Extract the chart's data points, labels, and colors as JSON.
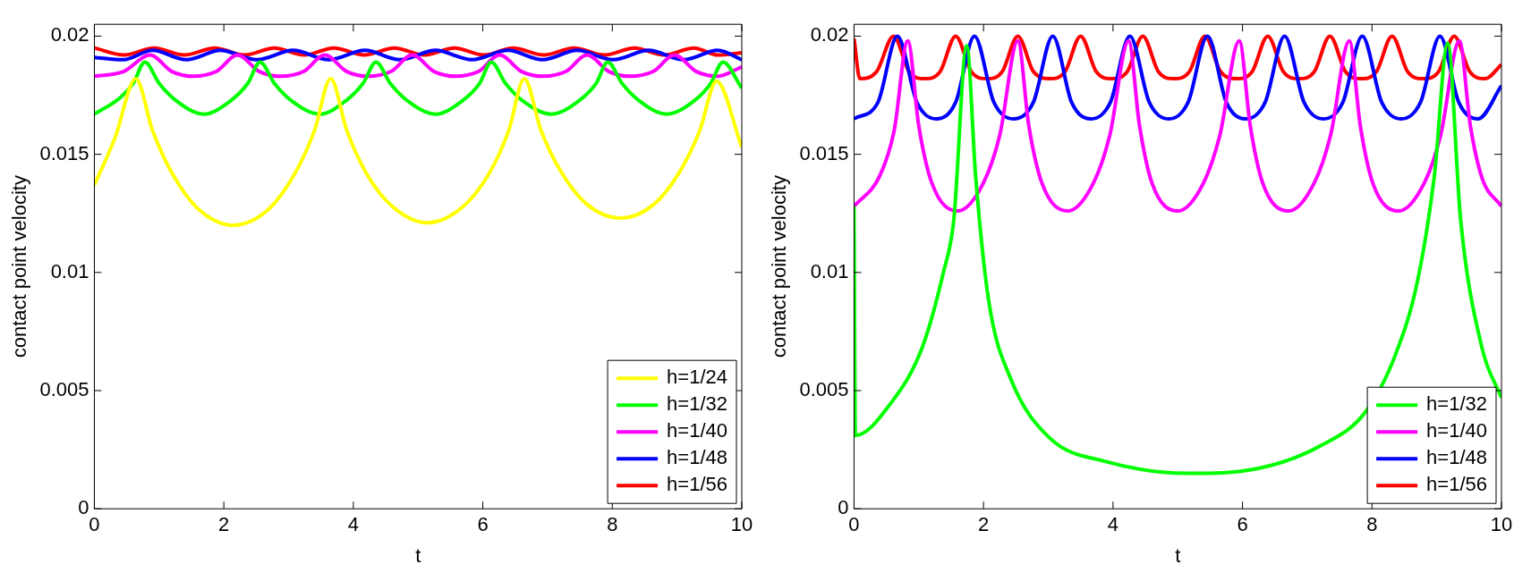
{
  "chart_data": [
    {
      "type": "line",
      "xlabel": "t",
      "ylabel": "contact point velocity",
      "xlim": [
        0,
        10
      ],
      "xticks": [
        0,
        2,
        4,
        6,
        8,
        10
      ],
      "ylim": [
        0,
        0.0205
      ],
      "yticks": [
        0,
        0.005,
        0.01,
        0.015,
        0.02
      ],
      "legend": "bottom right",
      "marker": "none",
      "grid": false,
      "series": [
        {
          "name": "h=1/24",
          "color": "#ffff00",
          "x": [
            0,
            0.32,
            0.64,
            0.9,
            1.2,
            1.6,
            2.14,
            2.7,
            3.1,
            3.4,
            3.65,
            3.9,
            4.2,
            4.6,
            5.15,
            5.7,
            6.1,
            6.4,
            6.64,
            6.9,
            7.2,
            7.6,
            8.13,
            8.65,
            9.05,
            9.35,
            9.61,
            10
          ],
          "values": [
            0.0137,
            0.0157,
            0.0182,
            0.016,
            0.0142,
            0.0127,
            0.012,
            0.0127,
            0.0142,
            0.016,
            0.0182,
            0.016,
            0.0142,
            0.0128,
            0.0121,
            0.0128,
            0.0142,
            0.016,
            0.0182,
            0.016,
            0.0143,
            0.0129,
            0.0123,
            0.0129,
            0.0143,
            0.016,
            0.0181,
            0.0153
          ]
        },
        {
          "name": "h=1/32",
          "color": "#00ff00",
          "x": [
            0,
            0.4,
            0.6,
            0.78,
            1.0,
            1.25,
            1.69,
            2.12,
            2.37,
            2.56,
            2.78,
            3.03,
            3.48,
            3.9,
            4.15,
            4.35,
            4.57,
            4.82,
            5.27,
            5.7,
            5.95,
            6.13,
            6.35,
            6.6,
            7.06,
            7.5,
            7.75,
            7.93,
            8.15,
            8.4,
            8.84,
            9.28,
            9.52,
            9.71,
            10
          ],
          "values": [
            0.0167,
            0.0174,
            0.018,
            0.0189,
            0.018,
            0.0173,
            0.0167,
            0.0173,
            0.018,
            0.0189,
            0.018,
            0.0173,
            0.0167,
            0.0173,
            0.018,
            0.0189,
            0.018,
            0.0173,
            0.0167,
            0.0173,
            0.018,
            0.0189,
            0.018,
            0.0173,
            0.0167,
            0.0173,
            0.018,
            0.0189,
            0.018,
            0.0173,
            0.0167,
            0.0173,
            0.018,
            0.0189,
            0.0178
          ]
        },
        {
          "name": "h=1/40",
          "color": "#ff00ff",
          "x": [
            0,
            0.45,
            0.86,
            1.2,
            1.53,
            1.88,
            2.21,
            2.55,
            2.88,
            3.23,
            3.56,
            3.9,
            4.23,
            4.58,
            4.91,
            5.25,
            5.58,
            5.93,
            6.26,
            6.6,
            6.93,
            7.28,
            7.61,
            7.95,
            8.28,
            8.63,
            8.96,
            9.3,
            9.63,
            10
          ],
          "values": [
            0.0183,
            0.0185,
            0.0192,
            0.0185,
            0.0183,
            0.0185,
            0.0192,
            0.0185,
            0.0183,
            0.0185,
            0.0192,
            0.0185,
            0.0183,
            0.0185,
            0.0192,
            0.0185,
            0.0183,
            0.0185,
            0.0192,
            0.0185,
            0.0183,
            0.0185,
            0.0192,
            0.0185,
            0.0183,
            0.0185,
            0.0192,
            0.0185,
            0.0183,
            0.0187
          ]
        },
        {
          "name": "h=1/48",
          "color": "#0000ff",
          "x": [
            0,
            0.45,
            0.9,
            1.42,
            1.95,
            2.51,
            3.07,
            3.62,
            4.18,
            4.72,
            5.27,
            5.83,
            6.39,
            6.92,
            7.46,
            8.01,
            8.56,
            9.1,
            9.63,
            10
          ],
          "values": [
            0.0191,
            0.019,
            0.0194,
            0.019,
            0.0194,
            0.019,
            0.0194,
            0.019,
            0.0194,
            0.019,
            0.0194,
            0.019,
            0.0194,
            0.019,
            0.0194,
            0.019,
            0.0194,
            0.019,
            0.0194,
            0.019
          ]
        },
        {
          "name": "h=1/56",
          "color": "#ff0000",
          "x": [
            0,
            0.46,
            0.92,
            1.39,
            1.86,
            2.32,
            2.78,
            3.24,
            3.7,
            4.17,
            4.63,
            5.1,
            5.56,
            6.02,
            6.47,
            6.94,
            7.41,
            7.88,
            8.34,
            8.8,
            9.26,
            9.63,
            10
          ],
          "values": [
            0.0195,
            0.0192,
            0.0195,
            0.0192,
            0.0195,
            0.0192,
            0.0195,
            0.0192,
            0.0195,
            0.0192,
            0.0195,
            0.0192,
            0.0195,
            0.0192,
            0.0195,
            0.0192,
            0.0195,
            0.0192,
            0.0195,
            0.0192,
            0.0195,
            0.0192,
            0.0193
          ]
        }
      ]
    },
    {
      "type": "line",
      "xlabel": "t",
      "ylabel": "contact point velocity",
      "xlim": [
        0,
        10
      ],
      "xticks": [
        0,
        2,
        4,
        6,
        8,
        10
      ],
      "ylim": [
        0,
        0.0205
      ],
      "yticks": [
        0,
        0.005,
        0.01,
        0.015,
        0.02
      ],
      "legend": "bottom right",
      "marker": "none",
      "grid": false,
      "series": [
        {
          "name": "h=1/32",
          "color": "#00ff00",
          "x": [
            0,
            0.02,
            0.55,
            1.05,
            1.38,
            1.54,
            1.74,
            1.88,
            2.08,
            2.42,
            3.02,
            3.89,
            5.16,
            6.23,
            7.23,
            7.9,
            8.36,
            8.7,
            8.96,
            9.17,
            9.37,
            9.7,
            10
          ],
          "values": [
            0.0128,
            0.0031,
            0.0044,
            0.0068,
            0.01,
            0.0122,
            0.0196,
            0.014,
            0.0088,
            0.0055,
            0.003,
            0.002,
            0.0015,
            0.0017,
            0.0027,
            0.0041,
            0.0065,
            0.0096,
            0.014,
            0.0197,
            0.0122,
            0.0068,
            0.0047
          ]
        },
        {
          "name": "h=1/40",
          "color": "#ff00ff",
          "x": [
            0,
            0.4,
            0.62,
            0.83,
            1.0,
            1.2,
            1.6,
            2.0,
            2.25,
            2.53,
            2.7,
            2.9,
            3.3,
            3.7,
            3.95,
            4.24,
            4.41,
            4.6,
            5.0,
            5.4,
            5.65,
            5.95,
            6.12,
            6.31,
            6.71,
            7.11,
            7.36,
            7.65,
            7.82,
            8.01,
            8.41,
            8.81,
            9.06,
            9.35,
            9.52,
            9.7,
            10
          ],
          "values": [
            0.0128,
            0.0141,
            0.016,
            0.0198,
            0.0162,
            0.0138,
            0.0126,
            0.0138,
            0.0158,
            0.0198,
            0.0162,
            0.0138,
            0.0126,
            0.0138,
            0.0158,
            0.0198,
            0.0162,
            0.0138,
            0.0126,
            0.0138,
            0.0158,
            0.0198,
            0.0162,
            0.0138,
            0.0126,
            0.0138,
            0.0158,
            0.0198,
            0.0162,
            0.0138,
            0.0126,
            0.0138,
            0.0158,
            0.0198,
            0.0162,
            0.014,
            0.0128
          ]
        },
        {
          "name": "h=1/48",
          "color": "#0000ff",
          "x": [
            0,
            0.37,
            0.67,
            0.97,
            1.27,
            1.57,
            1.86,
            2.16,
            2.46,
            2.77,
            3.07,
            3.36,
            3.66,
            3.96,
            4.26,
            4.56,
            4.86,
            5.16,
            5.46,
            5.75,
            6.05,
            6.35,
            6.65,
            6.95,
            7.25,
            7.55,
            7.85,
            8.15,
            8.45,
            8.75,
            9.05,
            9.34,
            9.64,
            10
          ],
          "values": [
            0.0165,
            0.0172,
            0.02,
            0.0172,
            0.0165,
            0.0172,
            0.02,
            0.0172,
            0.0165,
            0.0172,
            0.02,
            0.0172,
            0.0165,
            0.0172,
            0.02,
            0.0172,
            0.0165,
            0.0172,
            0.02,
            0.0172,
            0.0165,
            0.0172,
            0.02,
            0.0172,
            0.0165,
            0.0172,
            0.02,
            0.0172,
            0.0165,
            0.0172,
            0.02,
            0.0172,
            0.0165,
            0.0179
          ]
        },
        {
          "name": "h=1/56",
          "color": "#ff0000",
          "x": [
            0,
            0.09,
            0.35,
            0.61,
            0.85,
            1.09,
            1.33,
            1.57,
            1.81,
            2.05,
            2.29,
            2.53,
            2.77,
            3.02,
            3.26,
            3.5,
            3.74,
            3.98,
            4.22,
            4.46,
            4.7,
            4.94,
            5.18,
            5.42,
            5.66,
            5.91,
            6.15,
            6.39,
            6.63,
            6.87,
            7.11,
            7.35,
            7.59,
            7.83,
            8.07,
            8.31,
            8.55,
            8.79,
            9.03,
            9.27,
            9.51,
            9.75,
            10
          ],
          "values": [
            0.0199,
            0.0182,
            0.0185,
            0.02,
            0.0185,
            0.0182,
            0.0185,
            0.02,
            0.0185,
            0.0182,
            0.0185,
            0.02,
            0.0185,
            0.0182,
            0.0185,
            0.02,
            0.0185,
            0.0182,
            0.0185,
            0.02,
            0.0185,
            0.0182,
            0.0185,
            0.02,
            0.0185,
            0.0182,
            0.0185,
            0.02,
            0.0185,
            0.0182,
            0.0185,
            0.02,
            0.0185,
            0.0182,
            0.0185,
            0.02,
            0.0185,
            0.0182,
            0.0185,
            0.02,
            0.0185,
            0.0182,
            0.0188
          ]
        }
      ]
    }
  ]
}
